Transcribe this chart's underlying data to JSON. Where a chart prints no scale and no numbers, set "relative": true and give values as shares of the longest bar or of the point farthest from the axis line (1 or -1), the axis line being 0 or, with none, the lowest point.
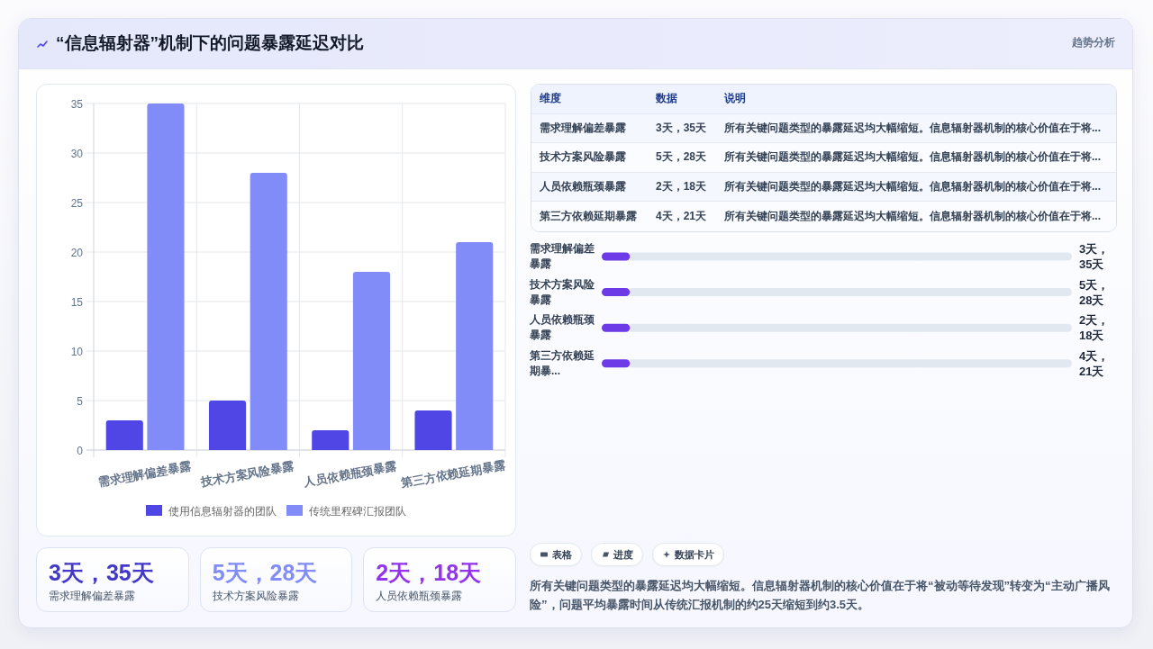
{
  "chart_data": [
    {
      "type": "bar",
      "title": "“信息辐射器”机制下的问题暴露延迟对比",
      "annotations": [
        "趋势分析"
      ],
      "categories": [
        "需求理解偏差暴露",
        "技术方案风险暴露",
        "人员依赖瓶颈暴露",
        "第三方依赖延期暴露"
      ],
      "series": [
        {
          "name": "使用信息辐射器的团队",
          "color": "#4f46e5",
          "values": [
            3,
            5,
            2,
            4
          ]
        },
        {
          "name": "传统里程碑汇报团队",
          "color": "#818cf8",
          "values": [
            35,
            28,
            18,
            21
          ]
        }
      ],
      "ylim": [
        0,
        35
      ],
      "yticks": [
        0,
        5,
        10,
        15,
        20,
        25,
        30,
        35
      ],
      "grid": true,
      "legend": "bottom"
    },
    {
      "type": "other",
      "annotations": [
        "维度",
        "数据",
        "说明",
        "需求理解偏差暴露",
        "3天，35天",
        "所有关键问题类型的暴露延迟均大幅缩短。信息辐射器机制的核心价值在于将...",
        "技术方案风险暴露",
        "5天，28天",
        "所有关键问题类型的暴露延迟均大幅缩短。信息辐射器机制的核心价值在于将...",
        "人员依赖瓶颈暴露",
        "2天，18天",
        "所有关键问题类型的暴露延迟均大幅缩短。信息辐射器机制的核心价值在于将...",
        "第三方依赖延期暴露",
        "4天，21天",
        "所有关键问题类型的暴露延迟均大幅缩短。信息辐射器机制的核心价值在于将..."
      ]
    },
    {
      "type": "bar",
      "orientation": "horizontal",
      "stacked": true,
      "relative": true,
      "categories": [
        "需求理解偏差暴露",
        "技术方案风险暴露",
        "人员依赖瓶颈暴露",
        "第三方依赖延期暴..."
      ],
      "series": [
        {
          "color": "#6d3ae8",
          "values": [
            0.06,
            0.06,
            0.06,
            0.06
          ]
        },
        {
          "color": "#e2e8f0",
          "values": [
            0.94,
            0.94,
            0.94,
            0.94
          ]
        }
      ],
      "annotations": [
        "3天，35天",
        "5天，28天",
        "2天，18天",
        "4天，21天"
      ]
    },
    {
      "type": "other",
      "annotations": [
        "3天，35天",
        "需求理解偏差暴露",
        "5天，28天",
        "技术方案风险暴露",
        "2天，18天",
        "人员依赖瓶颈暴露"
      ],
      "colors": [
        "#4338ca",
        "#818cf8",
        "#9333ea"
      ]
    },
    {
      "type": "other",
      "annotations": [
        "表格",
        "进度",
        "数据卡片",
        "所有关键问题类型的暴露延迟均大幅缩短。信息辐射器机制的核心价值在于将“被动等待发现”转变为“主动广播风险”，问题平均暴露时间从传统汇报机制的约25天缩短到约3.5天。"
      ]
    }
  ]
}
